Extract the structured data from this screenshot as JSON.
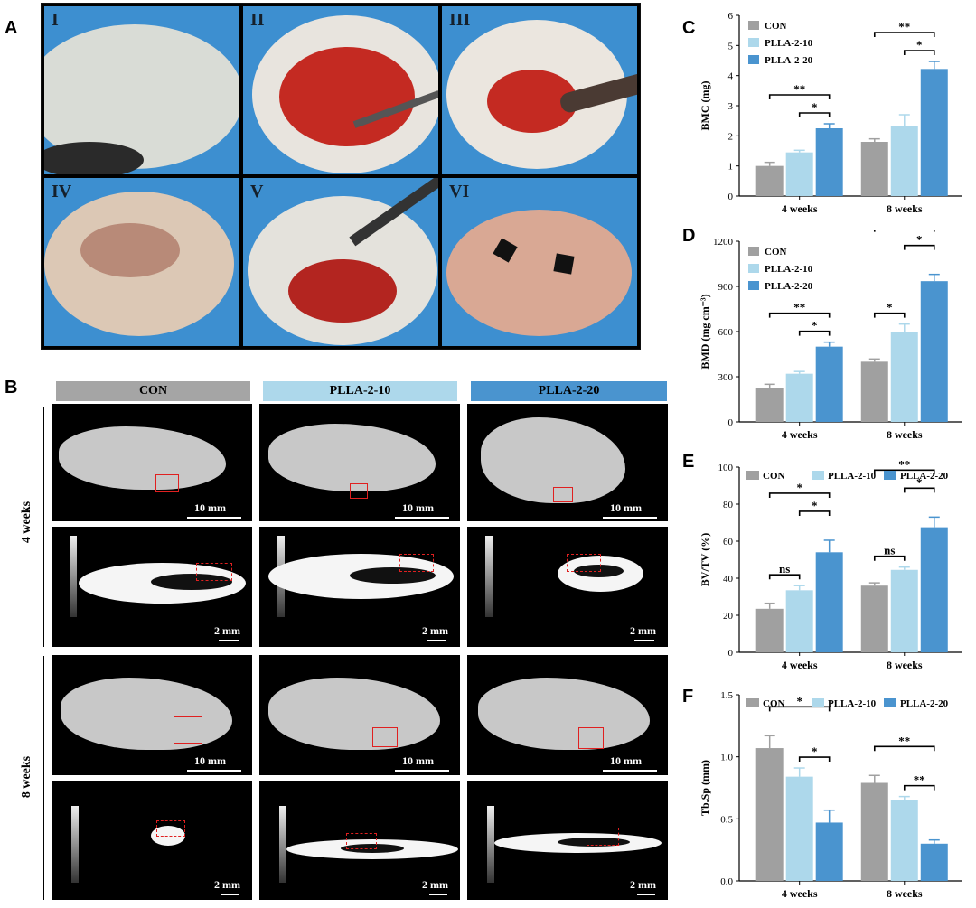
{
  "panel_letters": {
    "a": "A",
    "b": "B",
    "c": "C",
    "d": "D",
    "e": "E",
    "f": "F"
  },
  "panelA": {
    "photos": [
      "I",
      "II",
      "III",
      "IV",
      "V",
      "VI"
    ]
  },
  "panelB": {
    "groups": [
      "CON",
      "PLLA-2-10",
      "PLLA-2-20"
    ],
    "rows": [
      "4 weeks",
      "8 weeks"
    ],
    "scale_3d": "10 mm",
    "scale_2d": "2 mm"
  },
  "colors": {
    "con": "#a0a0a0",
    "p10": "#add8eb",
    "p20": "#4a94cf"
  },
  "chart_data": [
    {
      "id": "C",
      "type": "bar",
      "categories": [
        "4 weeks",
        "8 weeks"
      ],
      "series": [
        {
          "name": "CON",
          "values": [
            1.0,
            1.8
          ],
          "err": [
            0.12,
            0.1
          ]
        },
        {
          "name": "PLLA-2-10",
          "values": [
            1.45,
            2.32
          ],
          "err": [
            0.07,
            0.38
          ]
        },
        {
          "name": "PLLA-2-20",
          "values": [
            2.25,
            4.22
          ],
          "err": [
            0.15,
            0.25
          ]
        }
      ],
      "ylabel": "BMC (mg)",
      "ylim": [
        0,
        6
      ],
      "yticks": [
        0,
        1,
        2,
        3,
        4,
        5,
        6
      ],
      "legend": "top-left",
      "sig": [
        {
          "cat": 0,
          "from": 0,
          "to": 2,
          "label": "**",
          "level": 1
        },
        {
          "cat": 0,
          "from": 1,
          "to": 2,
          "label": "*",
          "level": 0
        },
        {
          "cat": 1,
          "from": 0,
          "to": 2,
          "label": "**",
          "level": 1
        },
        {
          "cat": 1,
          "from": 1,
          "to": 2,
          "label": "*",
          "level": 0
        }
      ]
    },
    {
      "id": "D",
      "type": "bar",
      "categories": [
        "4 weeks",
        "8 weeks"
      ],
      "series": [
        {
          "name": "CON",
          "values": [
            225,
            400
          ],
          "err": [
            25,
            18
          ]
        },
        {
          "name": "PLLA-2-10",
          "values": [
            320,
            595
          ],
          "err": [
            15,
            55
          ]
        },
        {
          "name": "PLLA-2-20",
          "values": [
            500,
            935
          ],
          "err": [
            30,
            45
          ]
        }
      ],
      "ylabel": "BMD (mg cm⁻³)",
      "ylim": [
        0,
        1200
      ],
      "yticks": [
        0,
        300,
        600,
        900,
        1200
      ],
      "legend": "top-left",
      "sig": [
        {
          "cat": 0,
          "from": 0,
          "to": 2,
          "label": "**",
          "level": 1
        },
        {
          "cat": 0,
          "from": 1,
          "to": 2,
          "label": "*",
          "level": 0
        },
        {
          "cat": 1,
          "from": 0,
          "to": 1,
          "label": "*",
          "level": 0
        },
        {
          "cat": 1,
          "from": 0,
          "to": 2,
          "label": "**",
          "level": 2
        },
        {
          "cat": 1,
          "from": 1,
          "to": 2,
          "label": "*",
          "level": 1
        }
      ]
    },
    {
      "id": "E",
      "type": "bar",
      "categories": [
        "4 weeks",
        "8 weeks"
      ],
      "series": [
        {
          "name": "CON",
          "values": [
            23.5,
            36
          ],
          "err": [
            3,
            1.5
          ]
        },
        {
          "name": "PLLA-2-10",
          "values": [
            33.5,
            44.5
          ],
          "err": [
            2.5,
            1.5
          ]
        },
        {
          "name": "PLLA-2-20",
          "values": [
            54,
            67.5
          ],
          "err": [
            6.5,
            5.5
          ]
        }
      ],
      "ylabel": "BV/TV (%)",
      "ylim": [
        0,
        100
      ],
      "yticks": [
        0,
        20,
        40,
        60,
        80,
        100
      ],
      "legend": "top-row",
      "sig": [
        {
          "cat": 0,
          "from": 0,
          "to": 1,
          "label": "ns",
          "level": 0
        },
        {
          "cat": 0,
          "from": 0,
          "to": 2,
          "label": "*",
          "level": 2
        },
        {
          "cat": 0,
          "from": 1,
          "to": 2,
          "label": "*",
          "level": 1
        },
        {
          "cat": 1,
          "from": 0,
          "to": 1,
          "label": "ns",
          "level": 0
        },
        {
          "cat": 1,
          "from": 0,
          "to": 2,
          "label": "**",
          "level": 2
        },
        {
          "cat": 1,
          "from": 1,
          "to": 2,
          "label": "*",
          "level": 1
        }
      ]
    },
    {
      "id": "F",
      "type": "bar",
      "categories": [
        "4 weeks",
        "8 weeks"
      ],
      "series": [
        {
          "name": "CON",
          "values": [
            1.07,
            0.79
          ],
          "err": [
            0.1,
            0.06
          ]
        },
        {
          "name": "PLLA-2-10",
          "values": [
            0.84,
            0.65
          ],
          "err": [
            0.07,
            0.03
          ]
        },
        {
          "name": "PLLA-2-20",
          "values": [
            0.47,
            0.3
          ],
          "err": [
            0.1,
            0.03
          ]
        }
      ],
      "ylabel": "Tb.Sp (mm)",
      "ylim": [
        0,
        1.5
      ],
      "yticks": [
        0.0,
        0.5,
        1.0,
        1.5
      ],
      "legend": "top-row",
      "sig": [
        {
          "cat": 0,
          "from": 0,
          "to": 2,
          "label": "*",
          "level": 1
        },
        {
          "cat": 0,
          "from": 1,
          "to": 2,
          "label": "*",
          "level": 0
        },
        {
          "cat": 1,
          "from": 0,
          "to": 2,
          "label": "**",
          "level": 1
        },
        {
          "cat": 1,
          "from": 1,
          "to": 2,
          "label": "**",
          "level": 0
        }
      ]
    }
  ]
}
